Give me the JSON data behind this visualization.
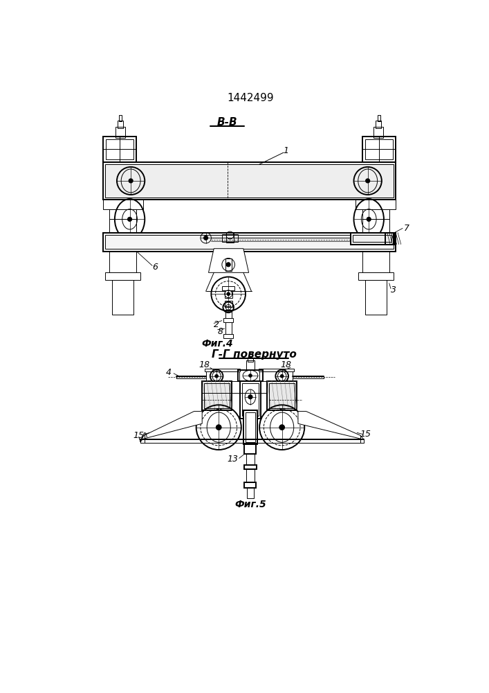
{
  "title": "1442499",
  "fig4_label": "В-В",
  "fig4_caption": "Фиг.4",
  "fig5_section": "Г-Г повернуто",
  "fig5_caption": "Фиг.5",
  "bg": "#ffffff"
}
